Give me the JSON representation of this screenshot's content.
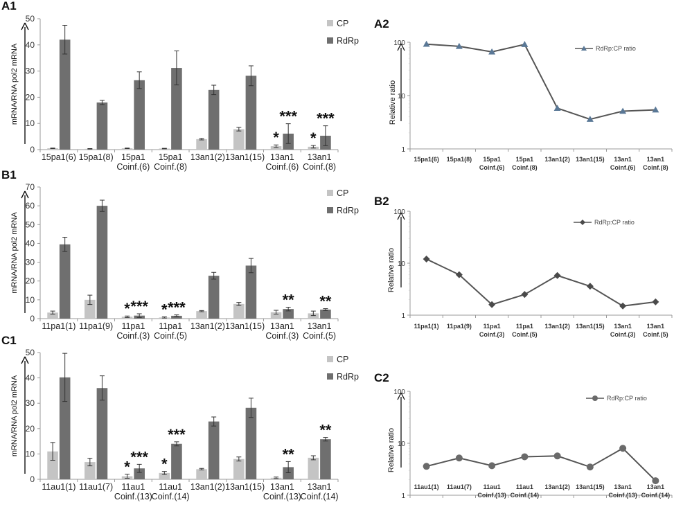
{
  "figure": "Relative expression panels",
  "colors": {
    "cp": "#c4c4c4",
    "rdrp": "#6f6f6f",
    "axis": "#9a9a9a",
    "grid": "#cfcfcf",
    "ratio_a": "#5a7896",
    "ratio_b": "#4a4a4a",
    "ratio_c": "#6a6a6a",
    "ratio_line": "#555555"
  },
  "chart_data": [
    {
      "id": "A1",
      "label": "A1",
      "type": "bar",
      "ylabel": "mRNA/RNA pol2 mRNA",
      "ylim": [
        0,
        50
      ],
      "yticks": [
        0,
        10,
        20,
        30,
        40,
        50
      ],
      "categories": [
        [
          "15pa1(6)"
        ],
        [
          "15pa1(8)"
        ],
        [
          "15pa1",
          "Coinf.(6)"
        ],
        [
          "15pa1",
          "Coinf.(8)"
        ],
        [
          "13an1(2)"
        ],
        [
          "13an1(15)"
        ],
        [
          "13an1",
          "Coinf.(6)"
        ],
        [
          "13an1",
          "Coinf.(8)"
        ]
      ],
      "series": [
        {
          "name": "CP",
          "values": [
            0.5,
            0.3,
            0.5,
            0.4,
            4.0,
            7.8,
            1.3,
            1.1
          ],
          "errors": [
            0.1,
            0.1,
            0.1,
            0.1,
            0.3,
            0.7,
            0.5,
            0.5
          ]
        },
        {
          "name": "RdRp",
          "values": [
            42,
            18,
            26.5,
            31.2,
            22.8,
            28.2,
            6.1,
            5.3
          ],
          "errors": [
            5.5,
            0.8,
            3.2,
            6.5,
            1.8,
            3.8,
            3.8,
            3.8
          ]
        }
      ],
      "annotations": [
        {
          "category": 6,
          "series": "CP",
          "text": "*"
        },
        {
          "category": 6,
          "series": "RdRp",
          "text": "***"
        },
        {
          "category": 7,
          "series": "CP",
          "text": "*"
        },
        {
          "category": 7,
          "series": "RdRp",
          "text": "***"
        }
      ]
    },
    {
      "id": "B1",
      "label": "B1",
      "type": "bar",
      "ylabel": "mRNA/RNA pol2 mRNA",
      "ylim": [
        0,
        70
      ],
      "yticks": [
        0,
        10,
        20,
        30,
        40,
        50,
        60,
        70
      ],
      "categories": [
        [
          "11pa1(1)"
        ],
        [
          "11pa1(9)"
        ],
        [
          "11pa1",
          "Coinf.(3)"
        ],
        [
          "11pa1",
          "Coinf.(5)"
        ],
        [
          "13an1(2)"
        ],
        [
          "13an1(15)"
        ],
        [
          "13an1",
          "Coinf.(3)"
        ],
        [
          "13an1",
          "Coinf.(5)"
        ]
      ],
      "series": [
        {
          "name": "CP",
          "values": [
            3.2,
            10,
            1.0,
            0.6,
            4.0,
            7.8,
            3.4,
            2.8
          ],
          "errors": [
            0.8,
            2.5,
            0.4,
            0.3,
            0.3,
            0.8,
            1.0,
            1.2
          ]
        },
        {
          "name": "RdRp",
          "values": [
            39.5,
            60,
            1.6,
            1.5,
            22.8,
            28.2,
            5.1,
            4.8
          ],
          "errors": [
            3.8,
            3.0,
            1.0,
            0.5,
            1.8,
            3.8,
            1.0,
            0.5
          ]
        }
      ],
      "annotations": [
        {
          "category": 2,
          "series": "CP",
          "text": "*"
        },
        {
          "category": 2,
          "series": "RdRp",
          "text": "***"
        },
        {
          "category": 3,
          "series": "CP",
          "text": "*"
        },
        {
          "category": 3,
          "series": "RdRp",
          "text": "***"
        },
        {
          "category": 6,
          "series": "RdRp",
          "text": "**"
        },
        {
          "category": 7,
          "series": "RdRp",
          "text": "**"
        }
      ]
    },
    {
      "id": "C1",
      "label": "C1",
      "type": "bar",
      "ylabel": "mRNA/RNA pol2 mRNA",
      "ylim": [
        0,
        50
      ],
      "yticks": [
        0,
        10,
        20,
        30,
        40,
        50
      ],
      "categories": [
        [
          "11au1(1)"
        ],
        [
          "11au1(7)"
        ],
        [
          "11au1",
          "Coinf.(13)"
        ],
        [
          "11au1",
          "Coinf.(14)"
        ],
        [
          "13an1(2)"
        ],
        [
          "13an1(15)"
        ],
        [
          "13an1",
          "Coinf.(13)"
        ],
        [
          "13an1",
          "Coinf.(14)"
        ]
      ],
      "series": [
        {
          "name": "CP",
          "values": [
            11,
            6.8,
            1.2,
            2.5,
            4.0,
            8.0,
            0.6,
            8.5
          ],
          "errors": [
            3.5,
            1.5,
            0.8,
            0.6,
            0.3,
            0.8,
            0.3,
            0.8
          ]
        },
        {
          "name": "RdRp",
          "values": [
            40.2,
            36,
            4.3,
            14,
            22.8,
            28.2,
            4.8,
            15.8
          ],
          "errors": [
            9.5,
            4.8,
            1.6,
            0.8,
            1.8,
            3.8,
            2.2,
            0.7
          ]
        }
      ],
      "annotations": [
        {
          "category": 2,
          "series": "CP",
          "text": "*"
        },
        {
          "category": 2,
          "series": "RdRp",
          "text": "***"
        },
        {
          "category": 3,
          "series": "CP",
          "text": "*"
        },
        {
          "category": 3,
          "series": "RdRp",
          "text": "***"
        },
        {
          "category": 6,
          "series": "RdRp",
          "text": "**"
        },
        {
          "category": 7,
          "series": "RdRp",
          "text": "**"
        }
      ]
    },
    {
      "id": "A2",
      "label": "A2",
      "type": "line",
      "yscale": "log",
      "ylabel": "Relative ratio",
      "ylim": [
        1,
        100
      ],
      "yticks": [
        1,
        10,
        100
      ],
      "marker": "triangle",
      "color_key": "ratio_a",
      "legend": "RdRp:CP ratio",
      "categories": [
        [
          "15pa1(6)"
        ],
        [
          "15pa1(8)"
        ],
        [
          "15pa1",
          "Coinf.(6)"
        ],
        [
          "15pa1",
          "Coinf.(8)"
        ],
        [
          "13an1(2)"
        ],
        [
          "13an1(15)"
        ],
        [
          "13an1",
          "Coinf.(6)"
        ],
        [
          "13an1",
          "Coinf.(8)"
        ]
      ],
      "values": [
        92,
        84,
        66,
        91,
        5.8,
        3.6,
        5.1,
        5.4
      ]
    },
    {
      "id": "B2",
      "label": "B2",
      "type": "line",
      "yscale": "log",
      "ylabel": "Relative ratio",
      "ylim": [
        1,
        100
      ],
      "yticks": [
        1,
        10,
        100
      ],
      "marker": "diamond",
      "color_key": "ratio_b",
      "legend": "RdRp:CP ratio",
      "categories": [
        [
          "11pa1(1)"
        ],
        [
          "11pa1(9)"
        ],
        [
          "11pa1",
          "Coinf.(3)"
        ],
        [
          "11pa1",
          "Coinf.(5)"
        ],
        [
          "13an1(2)"
        ],
        [
          "13an1(15)"
        ],
        [
          "13an1",
          "Coinf.(3)"
        ],
        [
          "13an1",
          "Coinf.(5)"
        ]
      ],
      "values": [
        12,
        6,
        1.6,
        2.5,
        5.8,
        3.6,
        1.5,
        1.8
      ]
    },
    {
      "id": "C2",
      "label": "C2",
      "type": "line",
      "yscale": "log",
      "ylabel": "Relative ratio",
      "ylim": [
        1,
        100
      ],
      "yticks": [
        1,
        10,
        100
      ],
      "marker": "circle",
      "color_key": "ratio_c",
      "legend": "RdRp:CP ratio",
      "categories": [
        [
          "11au1(1)"
        ],
        [
          "11au1(7)"
        ],
        [
          "11au1",
          "Coinf.(13)"
        ],
        [
          "11au1",
          "Coinf.(14)"
        ],
        [
          "13an1(2)"
        ],
        [
          "13an1(15)"
        ],
        [
          "13an1",
          "Coinf.(13)"
        ],
        [
          "13an1",
          "Coinf.(14)"
        ]
      ],
      "values": [
        3.6,
        5.2,
        3.7,
        5.5,
        5.7,
        3.5,
        8.0,
        1.9
      ]
    }
  ]
}
